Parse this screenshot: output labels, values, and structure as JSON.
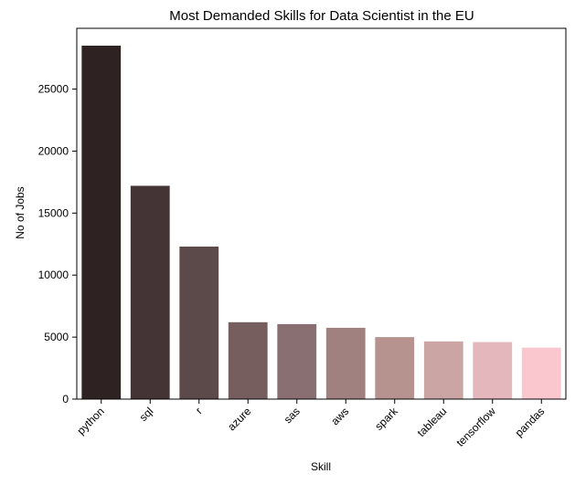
{
  "chart_data": {
    "type": "bar",
    "title": "Most Demanded Skills for Data Scientist in the EU",
    "xlabel": "Skill",
    "ylabel": "No of Jobs",
    "categories": [
      "python",
      "sql",
      "r",
      "azure",
      "sas",
      "aws",
      "spark",
      "tableau",
      "tensorflow",
      "pandas"
    ],
    "values": [
      28500,
      17200,
      12300,
      6200,
      6050,
      5750,
      5000,
      4650,
      4600,
      4150
    ],
    "ylim": [
      0,
      29900
    ],
    "yticks": [
      0,
      5000,
      10000,
      15000,
      20000,
      25000
    ],
    "grid": false,
    "legend": "none",
    "colors": [
      "#2e2222",
      "#443436",
      "#5c4a4b",
      "#765e5f",
      "#8a6f72",
      "#a0817f",
      "#b6938f",
      "#cba4a4",
      "#e3b7bc",
      "#fbc7cf"
    ]
  }
}
